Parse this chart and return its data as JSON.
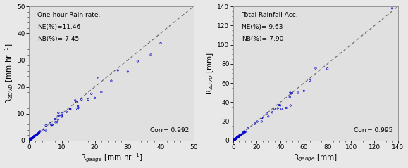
{
  "plot1": {
    "title": "One-hour Rain rate.",
    "ne": "NE(%)=11.46",
    "nb": "NB(%)=-7.45",
    "corr": "Corr= 0.992",
    "xlabel": "R$_{gauge}$ [mm hr$^{-1}$]",
    "ylabel": "R$_{2DVD}$ [mm hr$^{-1}$]",
    "xlim": [
      0,
      50
    ],
    "ylim": [
      0,
      50
    ],
    "xticks": [
      0,
      10,
      20,
      30,
      40,
      50
    ],
    "yticks": [
      0,
      10,
      20,
      30,
      40,
      50
    ]
  },
  "plot2": {
    "title": "Total Rainfall Acc.",
    "ne": "NE(%)= 9.63",
    "nb": "NB(%)=-7.90",
    "corr": "Corr= 0.995",
    "xlabel": "R$_{gauge}$ [mm]",
    "ylabel": "R$_{2DVD}$ [mm]",
    "xlim": [
      0,
      140
    ],
    "ylim": [
      0,
      140
    ],
    "xticks": [
      0,
      20,
      40,
      60,
      80,
      100,
      120,
      140
    ],
    "yticks": [
      0,
      20,
      40,
      60,
      80,
      100,
      120,
      140
    ]
  },
  "marker_color": "#0000cc",
  "marker_size": 3,
  "line_color": "#666666",
  "text_fontsize": 6.5,
  "label_fontsize": 7.5,
  "tick_fontsize": 6.5
}
